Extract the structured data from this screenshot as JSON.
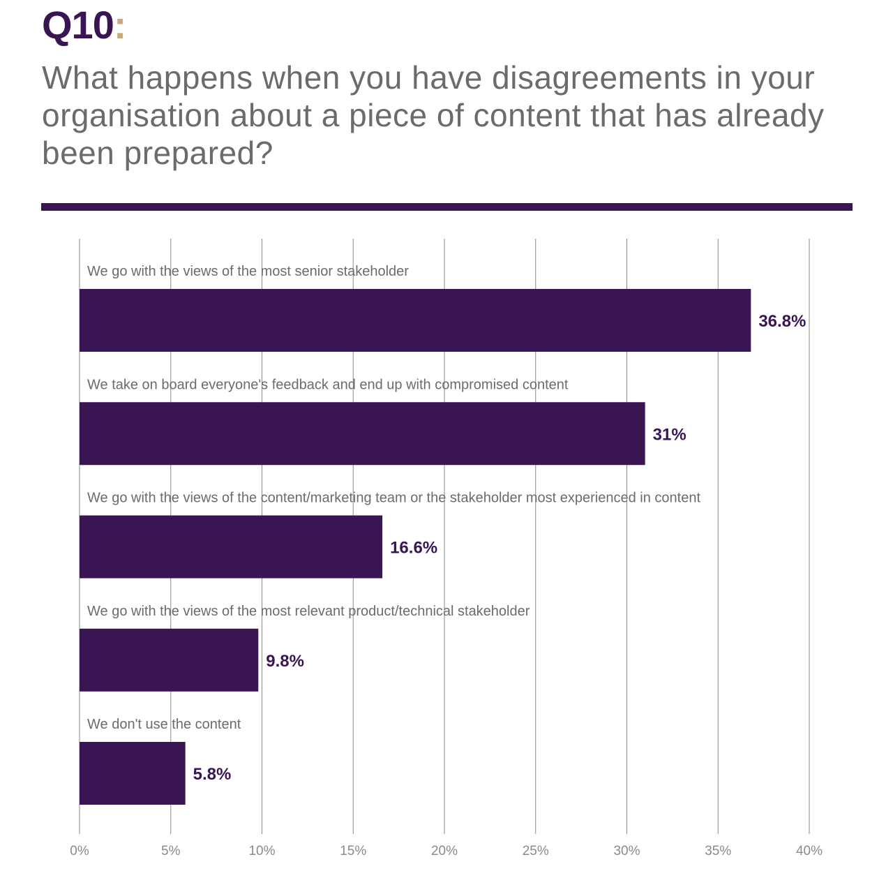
{
  "header": {
    "q_number": "Q10",
    "q_colon": ":",
    "question": "What happens when you have disagreements in your organisation about a piece of content that has already been prepared?"
  },
  "colors": {
    "bar": "#3a1554",
    "accent": "#c9a97a",
    "text": "#6b6b6b",
    "grid": "#8a8a8a"
  },
  "chart_data": {
    "type": "bar",
    "orientation": "horizontal",
    "categories": [
      "We go with the views of the most senior stakeholder",
      "We take on board everyone's feedback and end up with compromised content",
      "We go with the views of the content/marketing team or the stakeholder most experienced in content",
      "We go with the views of the most relevant product/technical stakeholder",
      "We don't use the content"
    ],
    "values": [
      36.8,
      31,
      16.6,
      9.8,
      5.8
    ],
    "value_labels": [
      "36.8%",
      "31%",
      "16.6%",
      "9.8%",
      "5.8%"
    ],
    "xlim": [
      0,
      40
    ],
    "xticks": [
      0,
      5,
      10,
      15,
      20,
      25,
      30,
      35,
      40
    ],
    "xtick_labels": [
      "0%",
      "5%",
      "10%",
      "15%",
      "20%",
      "25%",
      "30%",
      "35%",
      "40%"
    ],
    "grid": true,
    "legend": "none"
  }
}
